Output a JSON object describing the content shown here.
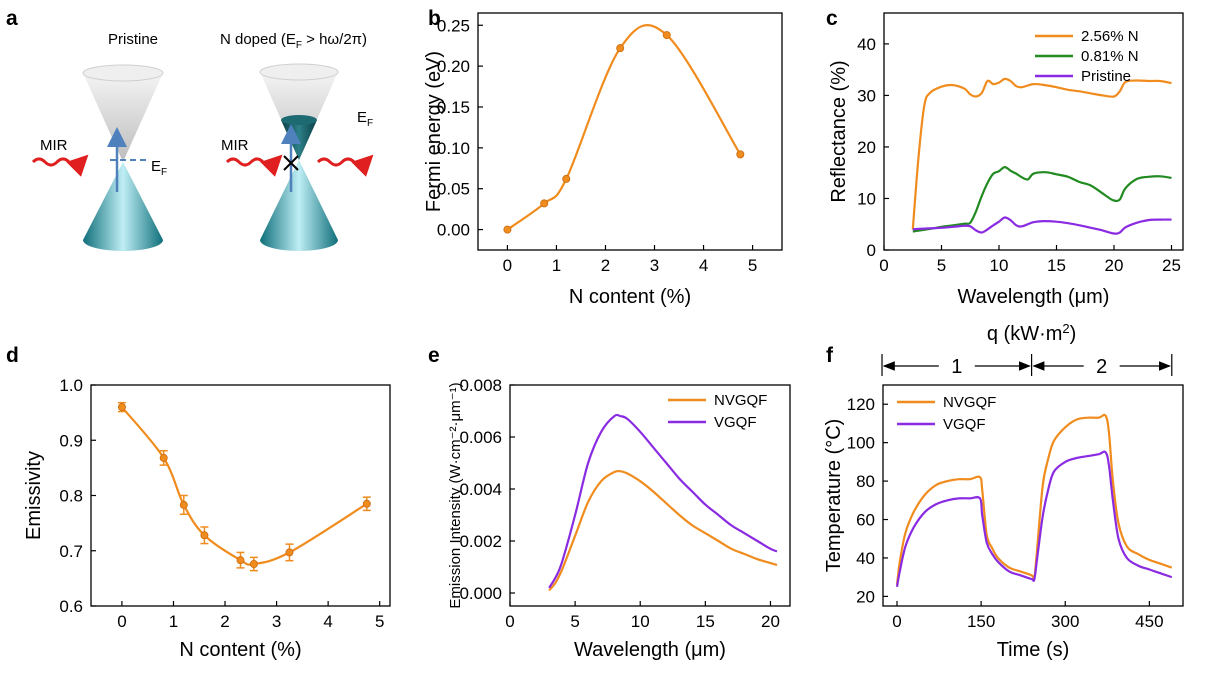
{
  "schematic": {
    "panel_label": "a",
    "left_title": "Pristine",
    "right_title_main": "N doped (E",
    "right_title_sub": "F",
    "right_title_rest": " > hω/2π)",
    "mir_label": "MIR",
    "fermi_main": "E",
    "fermi_sub": "F",
    "colors": {
      "cone_upper": "#d9d9d9",
      "cone_lower": "#2a8f9c",
      "filled": "#0f5058",
      "wave": "#e02020",
      "arrow": "#4f81bd"
    }
  },
  "chart_data": [
    {
      "id": "b",
      "panel_label": "b",
      "type": "line",
      "xlabel": "N content (%)",
      "ylabel": "Fermi energy (eV)",
      "xlim": [
        -0.6,
        5.6
      ],
      "ylim": [
        -0.025,
        0.265
      ],
      "xticks": [
        "0",
        "1",
        "2",
        "3",
        "4",
        "5"
      ],
      "yticks": [
        "0.00",
        "0.05",
        "0.10",
        "0.15",
        "0.20",
        "0.25"
      ],
      "series": [
        {
          "x": [
            0,
            0.75,
            1.2,
            2.3,
            3.25,
            4.75
          ],
          "y": [
            0,
            0.032,
            0.062,
            0.222,
            0.238,
            0.092
          ],
          "color": "#f08c1e"
        }
      ]
    },
    {
      "id": "c",
      "panel_label": "c",
      "type": "line",
      "xlabel": "Wavelength (μm)",
      "ylabel": "Reflectance (%)",
      "xlim": [
        0,
        26
      ],
      "ylim": [
        0,
        46
      ],
      "xticks": [
        "0",
        "5",
        "10",
        "15",
        "20",
        "25"
      ],
      "yticks": [
        "0",
        "10",
        "20",
        "30",
        "40"
      ],
      "legend_position": "top-right",
      "series": [
        {
          "name": "2.56% N",
          "color": "#f08c1e",
          "x": [
            2.5,
            3,
            3.5,
            4,
            5,
            6,
            7,
            7.5,
            8,
            8.5,
            9,
            9.5,
            10,
            10.5,
            11,
            11.5,
            12,
            13,
            14,
            15,
            16,
            17,
            18,
            19,
            20,
            20.5,
            21,
            22,
            23,
            24,
            25
          ],
          "y": [
            4,
            18,
            28,
            30.5,
            31.7,
            32.0,
            31.3,
            30.2,
            29.8,
            30.5,
            32.8,
            32.2,
            32.5,
            33.2,
            32.8,
            31.8,
            31.6,
            32.2,
            32.0,
            31.6,
            31.1,
            30.8,
            30.4,
            30.0,
            29.8,
            30.8,
            32.6,
            32.9,
            32.8,
            32.8,
            32.4
          ]
        },
        {
          "name": "0.81% N",
          "color": "#218a21",
          "x": [
            2.5,
            4,
            5,
            6,
            7,
            7.5,
            8,
            8.5,
            9,
            9.5,
            10,
            10.5,
            11,
            11.5,
            12,
            12.5,
            13,
            14,
            15,
            16,
            17,
            18,
            19,
            19.5,
            20,
            20.5,
            21,
            22,
            23,
            24,
            25
          ],
          "y": [
            3.6,
            4.1,
            4.5,
            4.8,
            5.1,
            5.3,
            7.5,
            10.5,
            13,
            14.8,
            15.3,
            16.1,
            15.4,
            14.8,
            14.1,
            13.7,
            14.8,
            15.1,
            14.7,
            14.2,
            13.2,
            12.5,
            11.0,
            10.2,
            9.6,
            9.8,
            12.0,
            13.8,
            14.2,
            14.3,
            14.0
          ]
        },
        {
          "name": "Pristine",
          "color": "#8a2be2",
          "x": [
            2.5,
            4,
            5,
            6,
            7,
            7.5,
            8,
            8.5,
            9,
            9.5,
            10,
            10.5,
            11,
            11.5,
            12,
            13,
            14,
            15,
            16,
            17,
            18,
            19,
            20,
            20.5,
            21,
            22,
            23,
            24,
            25
          ],
          "y": [
            4.0,
            4.2,
            4.3,
            4.5,
            4.7,
            4.6,
            3.8,
            3.4,
            4.0,
            4.8,
            5.5,
            6.3,
            5.8,
            4.8,
            4.6,
            5.4,
            5.6,
            5.5,
            5.2,
            4.8,
            4.3,
            3.8,
            3.2,
            3.4,
            4.4,
            5.3,
            5.8,
            5.9,
            5.9
          ]
        }
      ]
    },
    {
      "id": "d",
      "panel_label": "d",
      "type": "line",
      "xlabel": "N content (%)",
      "ylabel": "Emissivity",
      "xlim": [
        -0.6,
        5.2
      ],
      "ylim": [
        0.6,
        1.0
      ],
      "xticks": [
        "0",
        "1",
        "2",
        "3",
        "4",
        "5"
      ],
      "yticks": [
        "0.6",
        "0.7",
        "0.8",
        "0.9",
        "1.0"
      ],
      "series": [
        {
          "x": [
            0,
            0.81,
            1.2,
            1.6,
            2.3,
            2.56,
            3.25,
            4.75
          ],
          "y": [
            0.96,
            0.868,
            0.783,
            0.728,
            0.683,
            0.676,
            0.697,
            0.785
          ],
          "err": [
            0.008,
            0.013,
            0.017,
            0.015,
            0.014,
            0.012,
            0.015,
            0.012
          ],
          "color": "#f08c1e"
        }
      ]
    },
    {
      "id": "e",
      "panel_label": "e",
      "type": "line",
      "xlabel": "Wavelength (μm)",
      "ylabel": "Emission Intensity (W·cm⁻²·μm⁻¹)",
      "xlim": [
        0,
        21.5
      ],
      "ylim": [
        -0.0005,
        0.008
      ],
      "xticks": [
        "0",
        "5",
        "10",
        "15",
        "20"
      ],
      "yticks": [
        "0.000",
        "0.002",
        "0.004",
        "0.006",
        "0.008"
      ],
      "legend_position": "top-right",
      "series": [
        {
          "name": "NVGQF",
          "color": "#f08c1e",
          "x": [
            3,
            3.5,
            4,
            5,
            6,
            7,
            8,
            8.5,
            9,
            10,
            11,
            12,
            13,
            14,
            15,
            16,
            17,
            18,
            19,
            20,
            20.5
          ],
          "y": [
            0.0001,
            0.0004,
            0.0009,
            0.0022,
            0.0035,
            0.0043,
            0.00465,
            0.00468,
            0.0046,
            0.0043,
            0.0039,
            0.00345,
            0.003,
            0.0026,
            0.0023,
            0.002,
            0.0017,
            0.0015,
            0.0013,
            0.00115,
            0.00108
          ]
        },
        {
          "name": "VGQF",
          "color": "#8a2be2",
          "x": [
            3,
            3.5,
            4,
            5,
            6,
            7,
            8,
            8.5,
            9,
            10,
            11,
            12,
            13,
            14,
            15,
            16,
            17,
            18,
            19,
            20,
            20.5
          ],
          "y": [
            0.0002,
            0.0006,
            0.0012,
            0.003,
            0.005,
            0.0062,
            0.0068,
            0.0068,
            0.0067,
            0.0062,
            0.0056,
            0.005,
            0.0044,
            0.0039,
            0.0034,
            0.003,
            0.0026,
            0.0023,
            0.002,
            0.0017,
            0.0016
          ]
        }
      ]
    },
    {
      "id": "f",
      "panel_label": "f",
      "type": "line",
      "xlabel": "Time (s)",
      "ylabel": "Temperature (°C)",
      "xlim": [
        -25,
        510
      ],
      "ylim": [
        15,
        130
      ],
      "xticks": [
        "0",
        "150",
        "300",
        "450"
      ],
      "yticks": [
        "20",
        "40",
        "60",
        "80",
        "100",
        "120"
      ],
      "legend_position": "top-left",
      "top_annotation": {
        "title_main": "q (kW·m",
        "title_sup": "2",
        "title_end": ")",
        "segment_labels": [
          "1",
          "2"
        ],
        "segment_bounds": [
          0,
          240,
          490
        ]
      },
      "series": [
        {
          "name": "NVGQF",
          "color": "#f08c1e",
          "x": [
            0,
            5,
            15,
            30,
            50,
            70,
            90,
            110,
            130,
            148,
            152,
            160,
            170,
            180,
            200,
            220,
            240,
            245,
            250,
            260,
            270,
            280,
            300,
            320,
            340,
            360,
            372,
            378,
            385,
            395,
            410,
            430,
            450,
            470,
            490
          ],
          "y": [
            26,
            38,
            53,
            64,
            73,
            78,
            80,
            81,
            81,
            82,
            75,
            52,
            45,
            40,
            35,
            33,
            31,
            30,
            45,
            78,
            92,
            101,
            108,
            112,
            113,
            113,
            114,
            105,
            80,
            58,
            46,
            42,
            39,
            37,
            35
          ]
        },
        {
          "name": "VGQF",
          "color": "#8a2be2",
          "x": [
            0,
            5,
            15,
            30,
            50,
            70,
            90,
            110,
            130,
            148,
            152,
            160,
            170,
            180,
            200,
            220,
            240,
            245,
            250,
            260,
            270,
            280,
            300,
            320,
            340,
            360,
            372,
            378,
            385,
            395,
            410,
            430,
            450,
            470,
            490
          ],
          "y": [
            25,
            33,
            46,
            56,
            64,
            68,
            70,
            71,
            71,
            71,
            62,
            48,
            42,
            38,
            33,
            31,
            29,
            29,
            40,
            62,
            76,
            85,
            90,
            92,
            93,
            94,
            95,
            88,
            70,
            50,
            40,
            36,
            34,
            32,
            30
          ]
        }
      ]
    }
  ]
}
